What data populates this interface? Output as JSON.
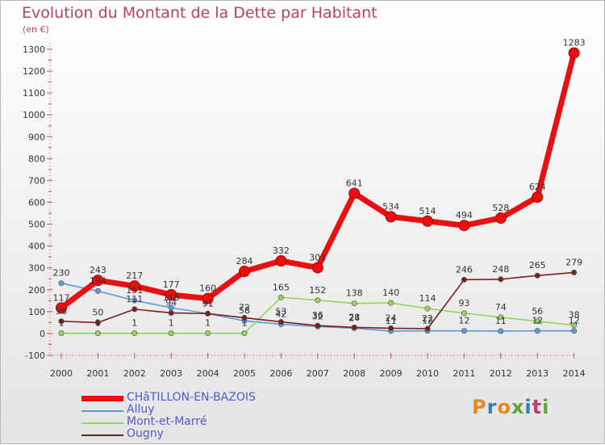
{
  "title": "Evolution du Montant de la Dette par Habitant",
  "unit": "(en €)",
  "logo": {
    "text": "Proxiti",
    "colors": [
      "#e88a1a",
      "#2e7fc2",
      "#e88a1a",
      "#5aa63a",
      "#2e7fc2",
      "#c03c6a",
      "#5aa63a"
    ]
  },
  "chart_data": {
    "type": "line",
    "title": "Evolution du Montant de la Dette par Habitant",
    "ylabel": "(en €)",
    "xlabel": "",
    "x": [
      "2000",
      "2001",
      "2002",
      "2003",
      "2004",
      "2005",
      "2006",
      "2007",
      "2008",
      "2009",
      "2010",
      "2011",
      "2012",
      "2013",
      "2014"
    ],
    "ylim": [
      -100,
      1300
    ],
    "yticks": [
      -100,
      0,
      100,
      200,
      300,
      400,
      500,
      600,
      700,
      800,
      900,
      1000,
      1100,
      1200,
      1300
    ],
    "grid": false,
    "legend_position": "bottom-left",
    "series": [
      {
        "name": "CHâTILLON-EN-BAZOIS",
        "color": "#e81010",
        "values": [
          117,
          243,
          217,
          177,
          160,
          284,
          332,
          301,
          641,
          534,
          514,
          494,
          528,
          624,
          1283
        ],
        "labels": [
          "117",
          "243",
          "217",
          "177",
          "160",
          "284",
          "332",
          "301",
          "641",
          "534",
          "514",
          "494",
          "528",
          "624",
          "1283"
        ]
      },
      {
        "name": "Alluy",
        "color": "#5a9bd8",
        "values": [
          230,
          194,
          151,
          118,
          91,
          58,
          42,
          32,
          24,
          11,
          12,
          12,
          11,
          12,
          12
        ],
        "labels": [
          "230",
          "194",
          "151",
          "118",
          "91",
          "58",
          "42",
          "32",
          "24",
          "11",
          "12",
          "12",
          "11",
          "12",
          "12"
        ]
      },
      {
        "name": "Mont-et-Marré",
        "color": "#8fd65a",
        "values": [
          1,
          1,
          1,
          1,
          1,
          1,
          165,
          152,
          138,
          140,
          114,
          93,
          74,
          56,
          38
        ],
        "labels": [
          "1",
          "1",
          "1",
          "1",
          "1",
          "1",
          "165",
          "152",
          "138",
          "140",
          "114",
          "93",
          "74",
          "56",
          "38"
        ]
      },
      {
        "name": "Ougny",
        "color": "#7a2020",
        "values": [
          56,
          50,
          111,
          94,
          91,
          72,
          53,
          36,
          28,
          24,
          22,
          246,
          248,
          265,
          279
        ],
        "labels": [
          "56",
          "50",
          "111",
          "94",
          "91",
          "72",
          "53",
          "36",
          "28",
          "24",
          "22",
          "246",
          "248",
          "265",
          "279"
        ]
      }
    ]
  }
}
